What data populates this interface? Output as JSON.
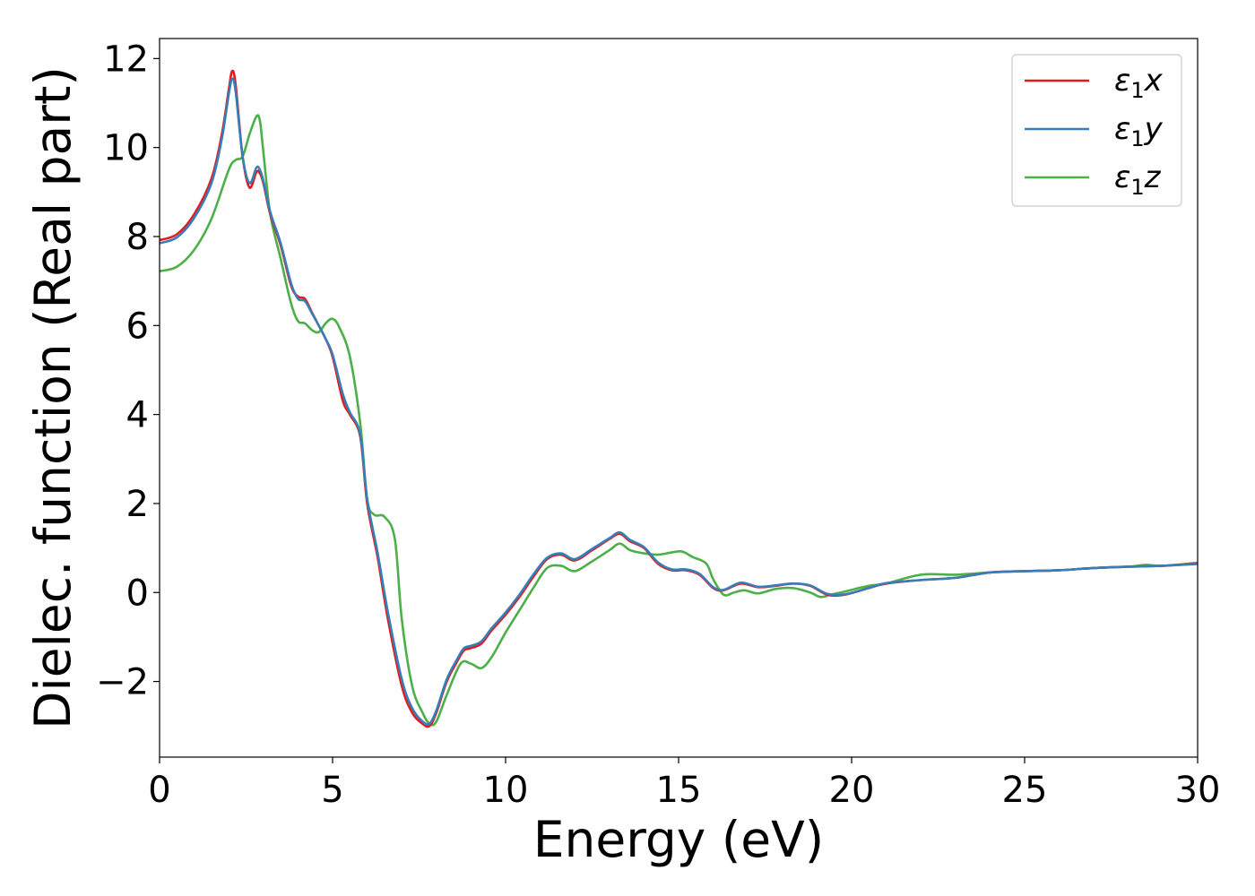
{
  "chart_data": {
    "type": "line",
    "title": "",
    "xlabel": "Energy (eV)",
    "ylabel": "Dielec. function (Real part)",
    "xlim": [
      0,
      30
    ],
    "ylim": [
      -3.7,
      12.45
    ],
    "x_ticks": [
      0,
      5,
      10,
      15,
      20,
      25,
      30
    ],
    "x_tick_labels": [
      "0",
      "5",
      "10",
      "15",
      "20",
      "25",
      "30"
    ],
    "y_ticks": [
      -2,
      0,
      2,
      4,
      6,
      8,
      10,
      12
    ],
    "y_tick_labels": [
      "−2",
      "0",
      "2",
      "4",
      "6",
      "8",
      "10",
      "12"
    ],
    "grid": false,
    "legend_position": "upper right",
    "series": [
      {
        "name": "ε₁x",
        "legend_base": "ε",
        "legend_sub": "1",
        "legend_suffix": "x",
        "color": "#e41a1c",
        "x": [
          0,
          0.5,
          1.0,
          1.5,
          1.8,
          2.0,
          2.1,
          2.2,
          2.4,
          2.6,
          2.8,
          2.9,
          3.0,
          3.2,
          3.5,
          3.8,
          4.0,
          4.2,
          4.4,
          4.6,
          4.8,
          5.0,
          5.3,
          5.5,
          5.8,
          6.0,
          6.3,
          6.6,
          7.0,
          7.3,
          7.6,
          7.8,
          8.0,
          8.3,
          8.6,
          8.8,
          9.0,
          9.3,
          9.6,
          10.0,
          10.4,
          10.8,
          11.2,
          11.6,
          12.0,
          12.5,
          13.0,
          13.3,
          13.6,
          14.0,
          14.4,
          14.8,
          15.2,
          15.6,
          16.0,
          16.3,
          16.8,
          17.3,
          17.8,
          18.3,
          18.8,
          19.3,
          19.8,
          20.5,
          21.0,
          22.0,
          23.0,
          24.0,
          25.0,
          26.0,
          27.0,
          28.0,
          29.0,
          30.0
        ],
        "y": [
          7.92,
          8.05,
          8.5,
          9.3,
          10.3,
          11.3,
          11.72,
          11.4,
          9.8,
          9.1,
          9.45,
          9.42,
          9.2,
          8.5,
          7.8,
          6.9,
          6.65,
          6.6,
          6.3,
          6.0,
          5.7,
          5.3,
          4.3,
          4.0,
          3.5,
          2.0,
          0.8,
          -0.6,
          -2.1,
          -2.7,
          -2.95,
          -3.0,
          -2.7,
          -2.0,
          -1.55,
          -1.3,
          -1.25,
          -1.15,
          -0.85,
          -0.5,
          -0.1,
          0.35,
          0.75,
          0.85,
          0.72,
          0.95,
          1.2,
          1.32,
          1.15,
          1.0,
          0.65,
          0.5,
          0.5,
          0.4,
          0.1,
          0.05,
          0.2,
          0.12,
          0.15,
          0.2,
          0.15,
          -0.05,
          -0.05,
          0.1,
          0.2,
          0.28,
          0.33,
          0.45,
          0.48,
          0.5,
          0.55,
          0.58,
          0.6,
          0.65
        ]
      },
      {
        "name": "ε₁y",
        "legend_base": "ε",
        "legend_sub": "1",
        "legend_suffix": "y",
        "color": "#377eb8",
        "x": [
          0,
          0.5,
          1.0,
          1.5,
          1.8,
          2.0,
          2.1,
          2.2,
          2.4,
          2.6,
          2.8,
          2.9,
          3.0,
          3.2,
          3.5,
          3.8,
          4.0,
          4.2,
          4.4,
          4.6,
          4.8,
          5.0,
          5.3,
          5.5,
          5.8,
          6.0,
          6.3,
          6.6,
          7.0,
          7.3,
          7.6,
          7.8,
          8.0,
          8.3,
          8.6,
          8.8,
          9.0,
          9.3,
          9.6,
          10.0,
          10.4,
          10.8,
          11.2,
          11.6,
          12.0,
          12.5,
          13.0,
          13.3,
          13.6,
          14.0,
          14.4,
          14.8,
          15.2,
          15.6,
          16.0,
          16.3,
          16.8,
          17.3,
          17.8,
          18.3,
          18.8,
          19.3,
          19.8,
          20.5,
          21.0,
          22.0,
          23.0,
          24.0,
          25.0,
          26.0,
          27.0,
          28.0,
          29.0,
          30.0
        ],
        "y": [
          7.85,
          7.98,
          8.42,
          9.2,
          10.2,
          11.2,
          11.55,
          11.25,
          9.8,
          9.2,
          9.55,
          9.5,
          9.25,
          8.55,
          7.85,
          6.95,
          6.6,
          6.55,
          6.28,
          6.0,
          5.7,
          5.35,
          4.45,
          4.05,
          3.55,
          2.1,
          0.9,
          -0.45,
          -1.95,
          -2.6,
          -2.9,
          -2.95,
          -2.65,
          -1.95,
          -1.5,
          -1.25,
          -1.2,
          -1.1,
          -0.8,
          -0.45,
          -0.05,
          0.4,
          0.78,
          0.88,
          0.75,
          0.98,
          1.22,
          1.35,
          1.18,
          1.02,
          0.68,
          0.52,
          0.52,
          0.42,
          0.12,
          0.06,
          0.22,
          0.13,
          0.16,
          0.2,
          0.16,
          -0.03,
          -0.04,
          0.1,
          0.21,
          0.28,
          0.33,
          0.45,
          0.48,
          0.5,
          0.55,
          0.58,
          0.6,
          0.64
        ]
      },
      {
        "name": "ε₁z",
        "legend_base": "ε",
        "legend_sub": "1",
        "legend_suffix": "z",
        "color": "#4daf4a",
        "x": [
          0,
          0.5,
          1.0,
          1.5,
          2.0,
          2.2,
          2.4,
          2.6,
          2.8,
          2.9,
          3.0,
          3.2,
          3.5,
          3.8,
          4.0,
          4.2,
          4.4,
          4.6,
          4.8,
          5.0,
          5.2,
          5.5,
          5.8,
          6.0,
          6.2,
          6.5,
          6.8,
          7.0,
          7.3,
          7.6,
          7.8,
          8.0,
          8.3,
          8.7,
          9.0,
          9.3,
          9.6,
          10.0,
          10.4,
          10.8,
          11.2,
          11.6,
          12.0,
          12.5,
          13.0,
          13.3,
          13.6,
          14.0,
          14.4,
          14.8,
          15.1,
          15.4,
          15.8,
          16.0,
          16.3,
          16.6,
          16.9,
          17.3,
          17.8,
          18.3,
          18.8,
          19.1,
          19.4,
          19.8,
          20.5,
          21.0,
          22.0,
          23.0,
          24.0,
          25.0,
          26.0,
          27.0,
          28.0,
          28.5,
          29.0,
          30.0
        ],
        "y": [
          7.22,
          7.32,
          7.7,
          8.4,
          9.5,
          9.72,
          9.8,
          10.3,
          10.7,
          10.6,
          9.9,
          8.5,
          7.5,
          6.5,
          6.1,
          6.05,
          5.9,
          5.85,
          6.05,
          6.15,
          5.95,
          5.3,
          3.8,
          2.1,
          1.75,
          1.7,
          1.2,
          -0.6,
          -2.1,
          -2.7,
          -2.95,
          -2.9,
          -2.3,
          -1.6,
          -1.6,
          -1.7,
          -1.45,
          -0.9,
          -0.4,
          0.1,
          0.55,
          0.6,
          0.48,
          0.7,
          0.95,
          1.1,
          0.95,
          0.88,
          0.85,
          0.9,
          0.92,
          0.8,
          0.65,
          0.3,
          -0.05,
          0.0,
          0.05,
          -0.02,
          0.08,
          0.1,
          0.0,
          -0.1,
          -0.05,
          0.02,
          0.15,
          0.2,
          0.4,
          0.4,
          0.45,
          0.48,
          0.5,
          0.55,
          0.58,
          0.62,
          0.6,
          0.67
        ]
      }
    ]
  }
}
